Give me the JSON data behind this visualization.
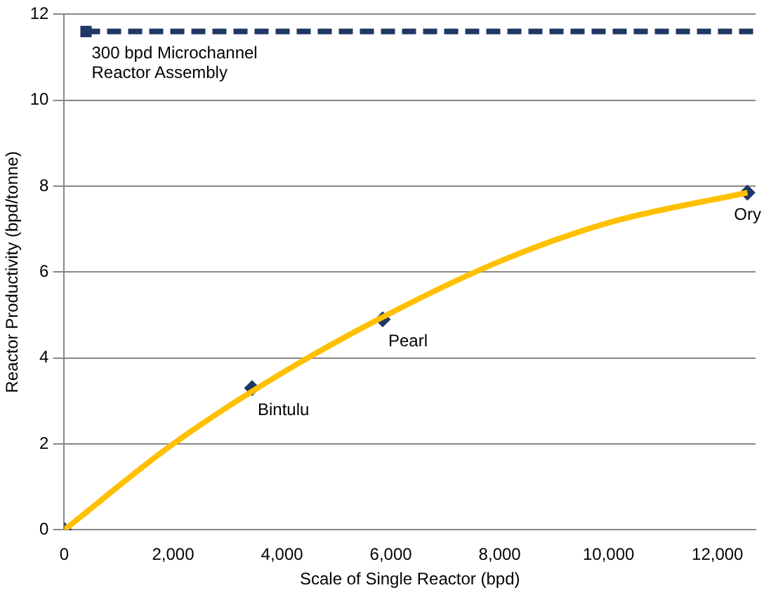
{
  "chart_data": {
    "type": "scatter",
    "xlabel": "Scale of Single Reactor (bpd)",
    "ylabel": "Reactor Productivity (bpd/tonne)",
    "xlim": [
      0,
      12700
    ],
    "xticks": [
      {
        "value": 0,
        "label": "0"
      },
      {
        "value": 2000,
        "label": "2,000"
      },
      {
        "value": 4000,
        "label": "4,000"
      },
      {
        "value": 6000,
        "label": "6,000"
      },
      {
        "value": 8000,
        "label": "8,000"
      },
      {
        "value": 10000,
        "label": "10,000"
      },
      {
        "value": 12000,
        "label": "12,000"
      }
    ],
    "ylim": [
      0,
      12
    ],
    "yticks": [
      0,
      2,
      4,
      6,
      8,
      10,
      12
    ],
    "grid": "y",
    "legend": false,
    "series": [
      {
        "type": "line",
        "color": "#ffc000",
        "marker": "none",
        "line_style": "solid",
        "x": [
          0,
          2000,
          4000,
          6000,
          8000,
          10000,
          12550
        ],
        "values": [
          0,
          2.0,
          3.65,
          5.05,
          6.25,
          7.15,
          7.85
        ]
      },
      {
        "color": "#1f3864",
        "marker": "diamond",
        "x": [
          0,
          3450,
          5850,
          12550
        ],
        "values": [
          0,
          3.3,
          4.9,
          7.85
        ]
      },
      {
        "type": "line",
        "color": "#1f3864",
        "marker": "none",
        "line_style": "dashed",
        "x": [
          400,
          12700
        ],
        "values": [
          11.6,
          11.6
        ]
      },
      {
        "color": "#1f3864",
        "marker": "square",
        "x": [
          400
        ],
        "values": [
          11.6
        ]
      }
    ],
    "annotations": [
      {
        "text": "300 bpd Microchannel Reactor Assembly",
        "x": 400,
        "y": 11.6
      },
      {
        "text": "Bintulu",
        "x": 3450,
        "y": 3.3
      },
      {
        "text": "Pearl",
        "x": 5850,
        "y": 4.9
      },
      {
        "text": "Ory",
        "x": 12550,
        "y": 7.85
      }
    ]
  }
}
